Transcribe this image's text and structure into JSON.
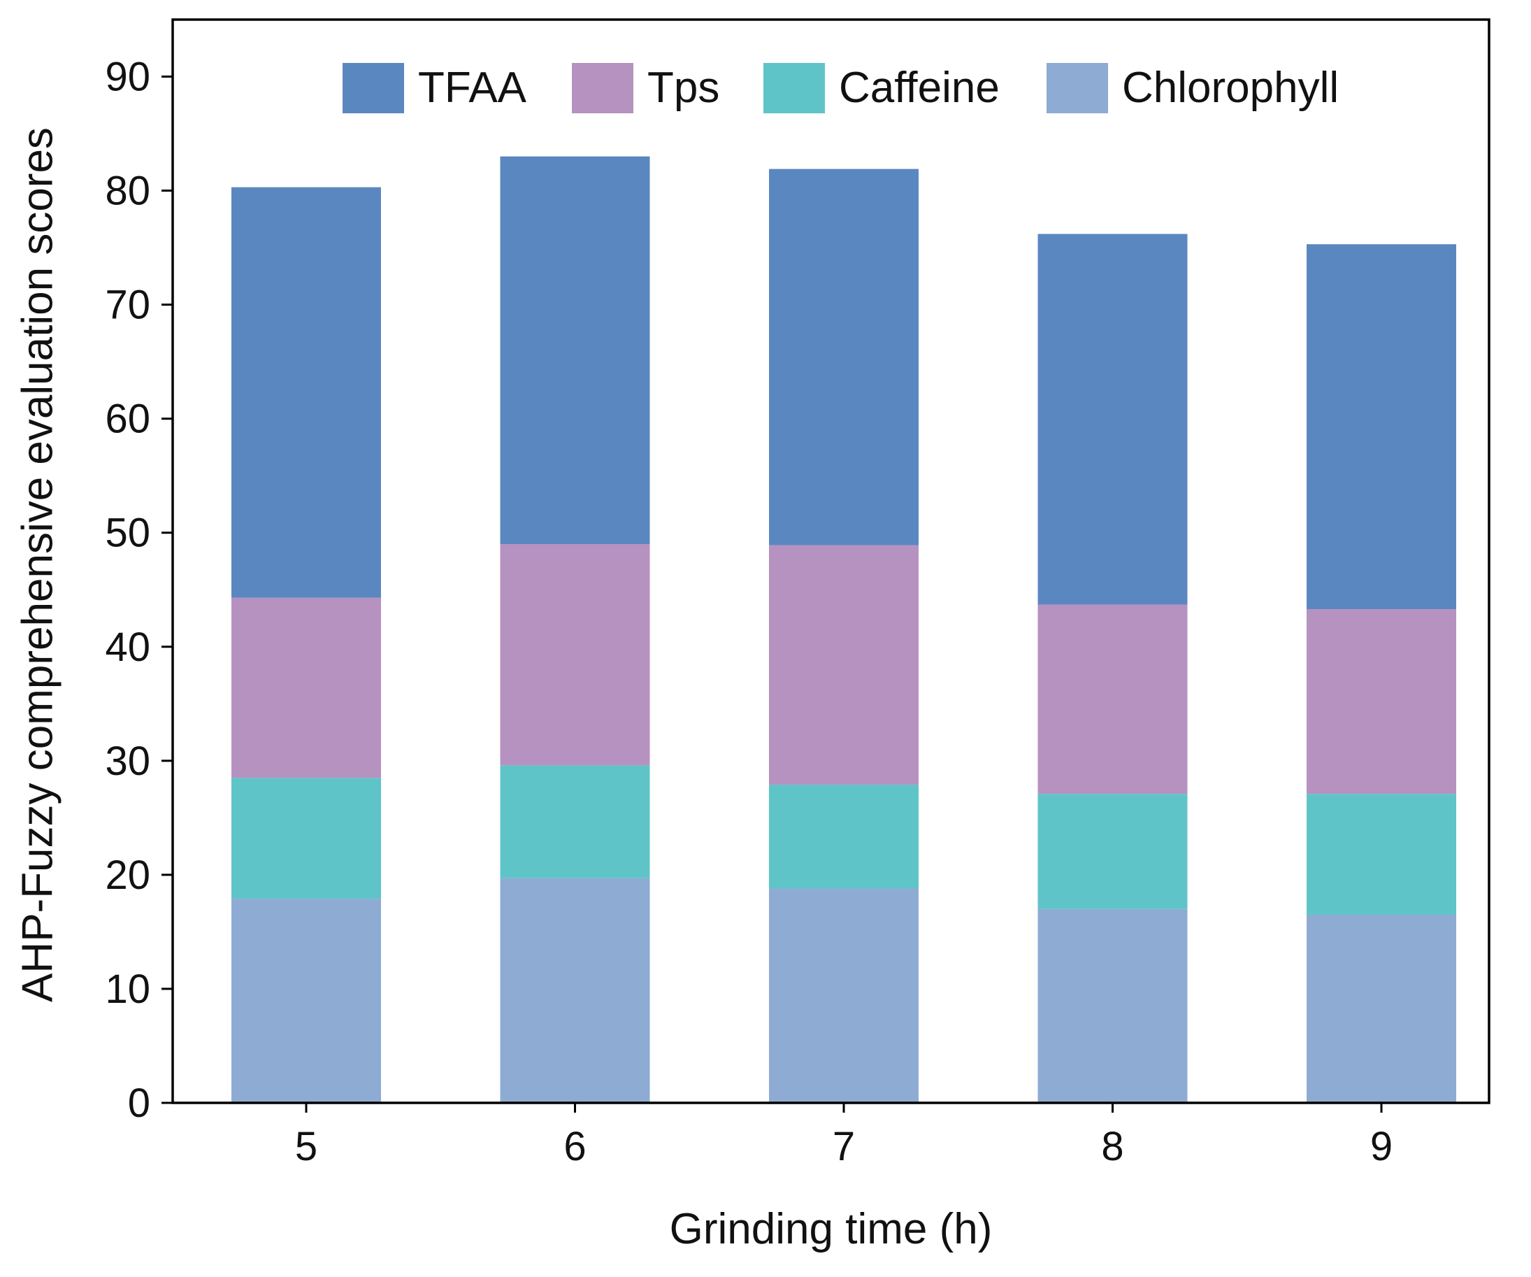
{
  "chart_data": {
    "type": "bar",
    "stacked": true,
    "title": "",
    "xlabel": "Grinding time (h)",
    "ylabel": "AHP-Fuzzy comprehensive evaluation scores",
    "ylim": [
      0,
      95
    ],
    "yticks": [
      0,
      10,
      20,
      30,
      40,
      50,
      60,
      70,
      80,
      90
    ],
    "ytick_labels": [
      "0",
      "10",
      "20",
      "30",
      "40",
      "50",
      "60",
      "70",
      "80",
      "90"
    ],
    "categories": [
      "5",
      "6",
      "7",
      "8",
      "9"
    ],
    "legend_position": "top",
    "series": [
      {
        "name": "Chlorophyll",
        "color": "#8eabd4",
        "values": [
          17.9,
          19.7,
          18.8,
          17.0,
          16.5
        ]
      },
      {
        "name": "Caffeine",
        "color": "#5fc4c8",
        "values": [
          10.6,
          9.9,
          9.1,
          10.1,
          10.6
        ]
      },
      {
        "name": "Tps",
        "color": "#b692c0",
        "values": [
          15.8,
          19.4,
          21.0,
          16.6,
          16.2
        ]
      },
      {
        "name": "TFAA",
        "color": "#5b87c1",
        "values": [
          36.0,
          34.0,
          33.0,
          32.5,
          32.0
        ]
      }
    ],
    "legend_order": [
      "TFAA",
      "Tps",
      "Caffeine",
      "Chlorophyll"
    ]
  }
}
